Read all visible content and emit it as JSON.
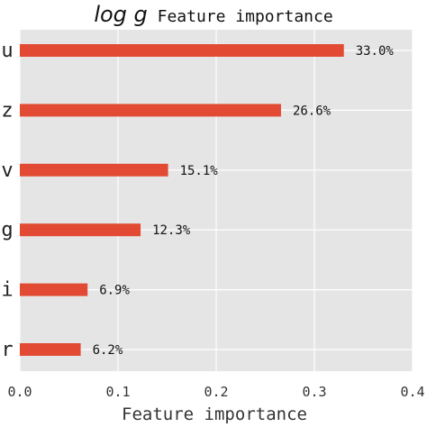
{
  "chart_data": {
    "type": "bar",
    "orientation": "horizontal",
    "title_math": "log g",
    "title_text": " Feature importance",
    "xlabel": "Feature importance",
    "ylabel": "",
    "categories": [
      "u",
      "z",
      "v",
      "g",
      "i",
      "r"
    ],
    "values": [
      0.33,
      0.266,
      0.151,
      0.123,
      0.069,
      0.062
    ],
    "data_labels": [
      "33.0%",
      "26.6%",
      "15.1%",
      "12.3%",
      "6.9%",
      "6.2%"
    ],
    "xlim": [
      0,
      0.4
    ],
    "xticks": [
      0,
      0.1,
      0.2,
      0.3,
      0.4
    ],
    "xtick_labels": [
      "0.0",
      "0.1",
      "0.2",
      "0.3",
      "0.4"
    ],
    "grid": true,
    "legend": "none",
    "colors": {
      "bar": "#e24a33",
      "plot_background": "#e5e5e5",
      "grid": "#ffffff"
    }
  }
}
